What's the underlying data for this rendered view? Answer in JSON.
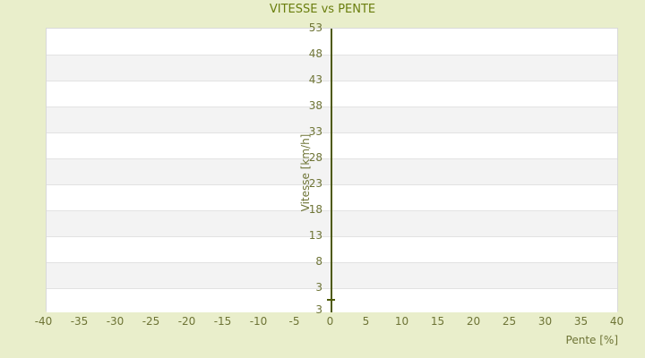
{
  "page": {
    "background_color": "#e9eecb"
  },
  "chart_data": {
    "type": "scatter",
    "title": "VITESSE vs PENTE",
    "xlabel": "Pente [%]",
    "ylabel": "Vitesse [km/h]",
    "x_ticks": [
      -40,
      -35,
      -30,
      -25,
      -20,
      -15,
      -10,
      -5,
      0,
      5,
      10,
      15,
      20,
      25,
      30,
      35,
      40
    ],
    "y_ticks": [
      53,
      48,
      43,
      38,
      33,
      28,
      23,
      18,
      13,
      8,
      3
    ],
    "y_axis_min_label": "3",
    "xlim": [
      -40,
      40
    ],
    "ylim": [
      -2,
      53
    ],
    "grid": "horizontal-bands-alternating",
    "legend": "none",
    "series": [
      {
        "name": "Vitesse",
        "points": [
          [
            0,
            0.8
          ]
        ],
        "marker": "dash"
      }
    ],
    "colors": {
      "background": "#e9eecb",
      "title_text": "#6a7e0e",
      "label_text": "#6e7436",
      "axis_line": "#4e5a0a",
      "band_white": "#ffffff",
      "band_gray": "#f3f3f3",
      "gridline": "#e2e2e2",
      "plot_border": "#d9d9d9"
    }
  }
}
